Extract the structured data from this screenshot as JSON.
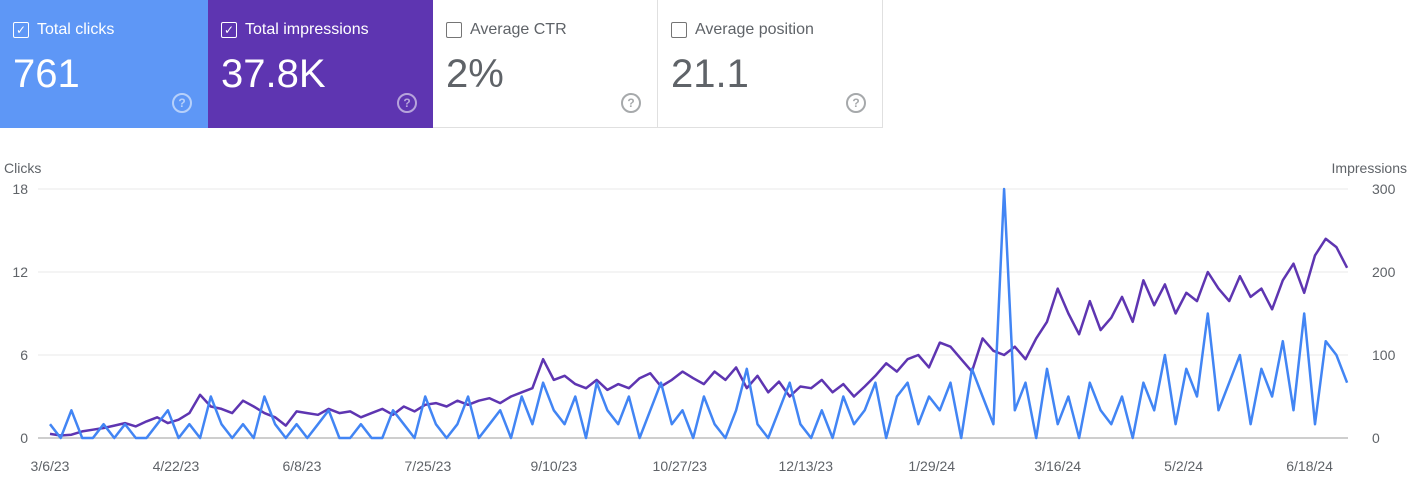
{
  "cards": [
    {
      "label": "Total clicks",
      "value": "761",
      "checked": true,
      "help_icon": "help-circle-icon"
    },
    {
      "label": "Total impressions",
      "value": "37.8K",
      "checked": true,
      "help_icon": "help-circle-icon"
    },
    {
      "label": "Average CTR",
      "value": "2%",
      "checked": false,
      "help_icon": "help-circle-icon"
    },
    {
      "label": "Average position",
      "value": "21.1",
      "checked": false,
      "help_icon": "help-circle-icon"
    }
  ],
  "colors": {
    "clicks": "#4285f4",
    "impressions": "#5e35b1",
    "clicks_card": "#5e97f6",
    "impressions_card": "#5e35b1"
  },
  "chart_data": {
    "type": "line",
    "x_start": "3/6/23",
    "x_step_days": 4,
    "left_axis": {
      "label": "Clicks",
      "ticks": [
        "0",
        "6",
        "12",
        "18"
      ],
      "ylim": [
        0,
        18
      ]
    },
    "right_axis": {
      "label": "Impressions",
      "ticks": [
        "0",
        "100",
        "200",
        "300"
      ],
      "ylim": [
        0,
        300
      ]
    },
    "x_ticks": [
      "3/6/23",
      "4/22/23",
      "6/8/23",
      "7/25/23",
      "9/10/23",
      "10/27/23",
      "12/13/23",
      "1/29/24",
      "3/16/24",
      "5/2/24",
      "6/18/24"
    ],
    "grid": true,
    "series": [
      {
        "name": "Clicks",
        "axis": "left",
        "values": [
          1,
          0,
          2,
          0,
          0,
          1,
          0,
          1,
          0,
          0,
          1,
          2,
          0,
          1,
          0,
          3,
          1,
          0,
          1,
          0,
          3,
          1,
          0,
          1,
          0,
          1,
          2,
          0,
          0,
          1,
          0,
          0,
          2,
          1,
          0,
          3,
          1,
          0,
          1,
          3,
          0,
          1,
          2,
          0,
          3,
          1,
          4,
          2,
          1,
          3,
          0,
          4,
          2,
          1,
          3,
          0,
          2,
          4,
          1,
          2,
          0,
          3,
          1,
          0,
          2,
          5,
          1,
          0,
          2,
          4,
          1,
          0,
          2,
          0,
          3,
          1,
          2,
          4,
          0,
          3,
          4,
          1,
          3,
          2,
          4,
          0,
          5,
          3,
          1,
          18,
          2,
          4,
          0,
          5,
          1,
          3,
          0,
          4,
          2,
          1,
          3,
          0,
          4,
          2,
          6,
          1,
          5,
          3,
          9,
          2,
          4,
          6,
          1,
          5,
          3,
          7,
          2,
          9,
          1,
          7,
          6,
          4
        ]
      },
      {
        "name": "Impressions",
        "axis": "right",
        "values": [
          5,
          3,
          4,
          8,
          10,
          12,
          15,
          18,
          14,
          20,
          25,
          18,
          22,
          30,
          52,
          38,
          35,
          30,
          45,
          38,
          30,
          25,
          15,
          32,
          30,
          28,
          35,
          30,
          32,
          25,
          30,
          35,
          28,
          38,
          32,
          40,
          42,
          38,
          45,
          40,
          45,
          48,
          42,
          50,
          55,
          60,
          95,
          70,
          75,
          65,
          60,
          70,
          58,
          65,
          60,
          72,
          78,
          62,
          70,
          80,
          72,
          65,
          80,
          70,
          85,
          60,
          75,
          55,
          68,
          50,
          62,
          60,
          70,
          55,
          65,
          50,
          62,
          75,
          90,
          80,
          95,
          100,
          85,
          115,
          110,
          95,
          80,
          120,
          105,
          100,
          110,
          95,
          120,
          140,
          180,
          150,
          125,
          165,
          130,
          145,
          170,
          140,
          190,
          160,
          185,
          150,
          175,
          165,
          200,
          180,
          165,
          195,
          170,
          180,
          155,
          190,
          210,
          175,
          220,
          240,
          230,
          205
        ]
      }
    ]
  }
}
